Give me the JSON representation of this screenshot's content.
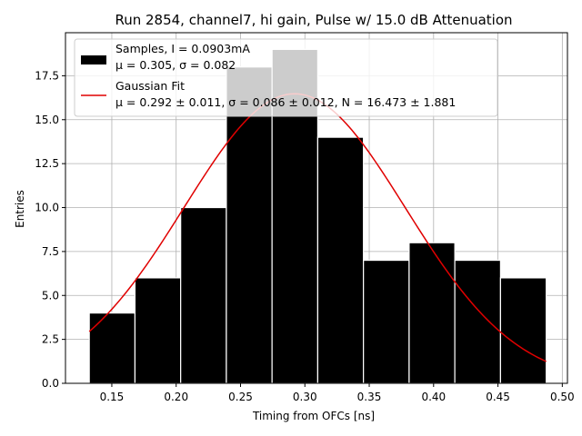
{
  "chart_data": {
    "type": "bar",
    "title": "Run 2854, channel7, hi gain, Pulse w/ 15.0 dB Attenuation",
    "xlabel": "Timing from OFCs [ns]",
    "ylabel": "Entries",
    "xlim": [
      0.114,
      0.504
    ],
    "ylim": [
      0,
      19.95
    ],
    "grid": true,
    "legend_position": "top-left",
    "x_ticks": [
      {
        "value": 0.15,
        "label": "0.15"
      },
      {
        "value": 0.2,
        "label": "0.20"
      },
      {
        "value": 0.25,
        "label": "0.25"
      },
      {
        "value": 0.3,
        "label": "0.30"
      },
      {
        "value": 0.35,
        "label": "0.35"
      },
      {
        "value": 0.4,
        "label": "0.40"
      },
      {
        "value": 0.45,
        "label": "0.45"
      },
      {
        "value": 0.5,
        "label": "0.50"
      }
    ],
    "y_ticks": [
      {
        "value": 0.0,
        "label": "0.0"
      },
      {
        "value": 2.5,
        "label": "2.5"
      },
      {
        "value": 5.0,
        "label": "5.0"
      },
      {
        "value": 7.5,
        "label": "7.5"
      },
      {
        "value": 10.0,
        "label": "10.0"
      },
      {
        "value": 12.5,
        "label": "12.5"
      },
      {
        "value": 15.0,
        "label": "15.0"
      },
      {
        "value": 17.5,
        "label": "17.5"
      }
    ],
    "histogram": {
      "bin_edges": [
        0.1325,
        0.168,
        0.2035,
        0.239,
        0.2745,
        0.31,
        0.3455,
        0.381,
        0.4165,
        0.452,
        0.4875
      ],
      "counts": [
        4,
        6,
        10,
        18,
        19,
        14,
        7,
        8,
        7,
        6
      ],
      "color": "#000000",
      "edge_color": "#ffffff"
    },
    "fit": {
      "type": "gaussian",
      "mu": 0.292,
      "sigma": 0.086,
      "N": 16.473,
      "x_range": [
        0.1325,
        0.4875
      ],
      "color": "#e00000"
    },
    "legend": [
      {
        "kind": "samples",
        "line1": "Samples, I = 0.0903mA",
        "line2": "μ = 0.305, σ = 0.082"
      },
      {
        "kind": "fit",
        "line1": "Gaussian Fit",
        "line2": "μ = 0.292 ± 0.011, σ = 0.086 ± 0.012, N = 16.473 ± 1.881"
      }
    ]
  }
}
